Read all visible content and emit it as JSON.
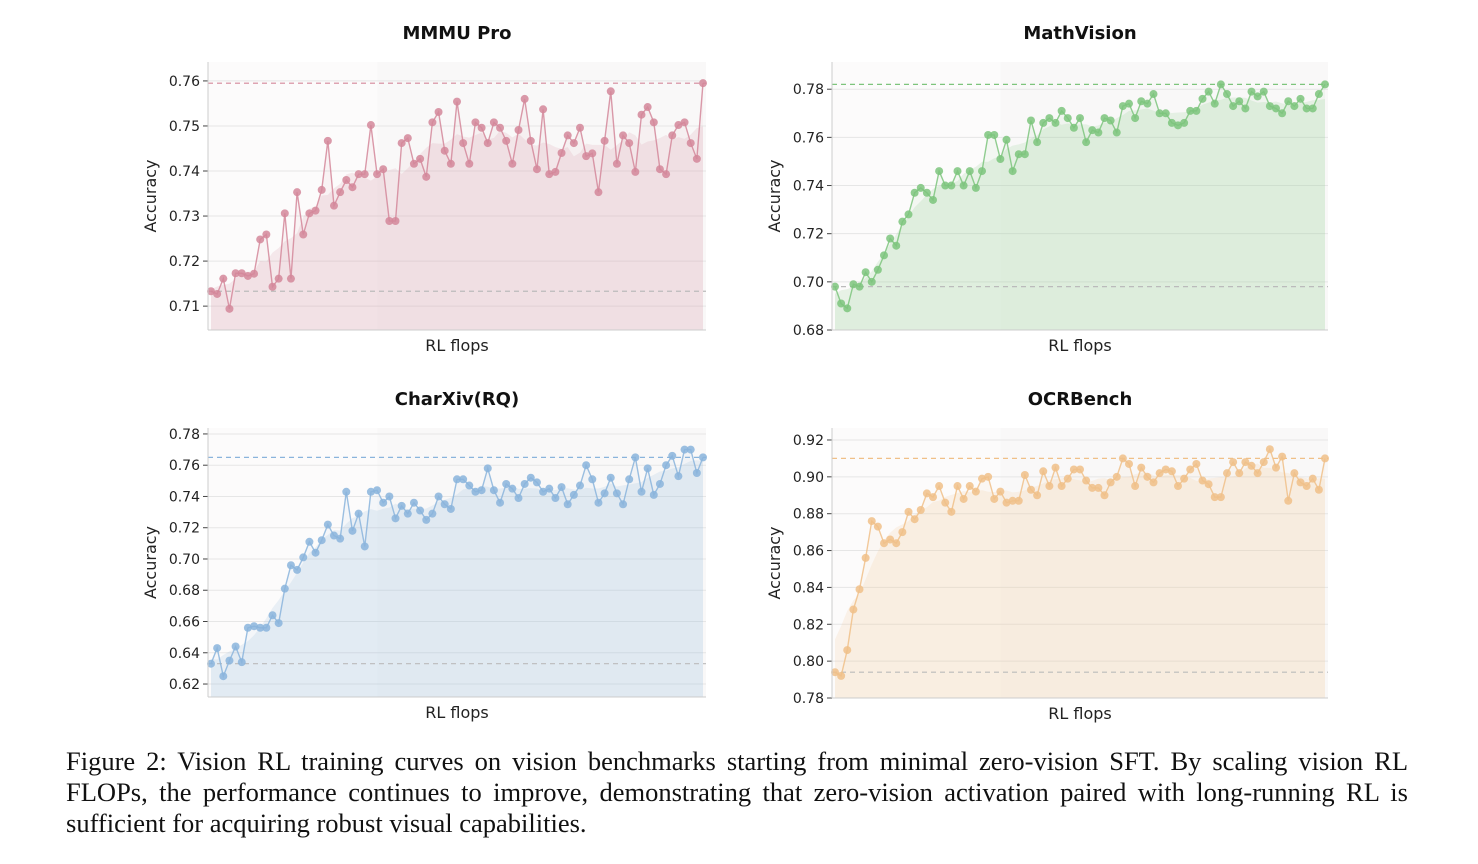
{
  "chart_data": [
    {
      "type": "line",
      "title": "MMMU Pro",
      "xlabel": "RL flops",
      "ylabel": "Accuracy",
      "ylim": [
        0.7047,
        0.7642
      ],
      "yticks": [
        "0.71",
        "0.72",
        "0.73",
        "0.74",
        "0.75",
        "0.76"
      ],
      "grid": true,
      "color": "#d4879a",
      "reference_lines": [
        0.7595,
        0.7133
      ],
      "values": [
        0.7133,
        0.7127,
        0.7161,
        0.7094,
        0.7173,
        0.7173,
        0.7167,
        0.7172,
        0.7248,
        0.7259,
        0.7143,
        0.7161,
        0.7306,
        0.7161,
        0.7353,
        0.7259,
        0.7306,
        0.7312,
        0.7358,
        0.7467,
        0.7323,
        0.7353,
        0.738,
        0.7364,
        0.7393,
        0.7393,
        0.7502,
        0.7393,
        0.7404,
        0.7289,
        0.7289,
        0.7462,
        0.7473,
        0.7416,
        0.7427,
        0.7387,
        0.7508,
        0.7531,
        0.7445,
        0.7416,
        0.7554,
        0.7462,
        0.7416,
        0.7508,
        0.7496,
        0.7462,
        0.7508,
        0.7496,
        0.7467,
        0.7416,
        0.7491,
        0.756,
        0.7467,
        0.7404,
        0.7537,
        0.7393,
        0.7398,
        0.744,
        0.7479,
        0.7462,
        0.7496,
        0.7433,
        0.7439,
        0.7353,
        0.7467,
        0.7577,
        0.7416,
        0.7479,
        0.7462,
        0.7398,
        0.7525,
        0.7542,
        0.7508,
        0.7404,
        0.7393,
        0.7479,
        0.7502,
        0.7508,
        0.7462,
        0.7427,
        0.7595
      ]
    },
    {
      "type": "line",
      "title": "MathVision",
      "xlabel": "RL flops",
      "ylabel": "Accuracy",
      "ylim": [
        0.68,
        0.7913
      ],
      "yticks": [
        "0.68",
        "0.70",
        "0.72",
        "0.74",
        "0.76",
        "0.78"
      ],
      "grid": true,
      "color": "#7dc47c",
      "reference_lines": [
        0.782,
        0.698
      ],
      "values": [
        0.698,
        0.691,
        0.689,
        0.699,
        0.698,
        0.704,
        0.7,
        0.705,
        0.711,
        0.718,
        0.715,
        0.725,
        0.728,
        0.737,
        0.739,
        0.737,
        0.734,
        0.746,
        0.74,
        0.74,
        0.746,
        0.74,
        0.746,
        0.739,
        0.746,
        0.761,
        0.761,
        0.751,
        0.759,
        0.746,
        0.753,
        0.753,
        0.767,
        0.758,
        0.766,
        0.768,
        0.766,
        0.771,
        0.768,
        0.764,
        0.768,
        0.758,
        0.763,
        0.762,
        0.768,
        0.767,
        0.762,
        0.773,
        0.774,
        0.768,
        0.775,
        0.774,
        0.778,
        0.77,
        0.77,
        0.766,
        0.765,
        0.766,
        0.771,
        0.771,
        0.776,
        0.779,
        0.774,
        0.782,
        0.778,
        0.773,
        0.775,
        0.772,
        0.779,
        0.777,
        0.779,
        0.773,
        0.772,
        0.77,
        0.775,
        0.773,
        0.776,
        0.772,
        0.772,
        0.778,
        0.782
      ]
    },
    {
      "type": "line",
      "title": "CharXiv(RQ)",
      "xlabel": "RL flops",
      "ylabel": "Accuracy",
      "ylim": [
        0.6117,
        0.7838
      ],
      "yticks": [
        "0.62",
        "0.64",
        "0.66",
        "0.68",
        "0.70",
        "0.72",
        "0.74",
        "0.76",
        "0.78"
      ],
      "grid": true,
      "color": "#8ab4dc",
      "reference_lines": [
        0.765,
        0.633
      ],
      "values": [
        0.633,
        0.643,
        0.625,
        0.635,
        0.644,
        0.634,
        0.656,
        0.657,
        0.656,
        0.656,
        0.664,
        0.659,
        0.681,
        0.696,
        0.693,
        0.701,
        0.711,
        0.704,
        0.712,
        0.722,
        0.715,
        0.713,
        0.743,
        0.718,
        0.729,
        0.708,
        0.743,
        0.744,
        0.736,
        0.74,
        0.726,
        0.734,
        0.729,
        0.736,
        0.731,
        0.725,
        0.729,
        0.74,
        0.735,
        0.732,
        0.751,
        0.751,
        0.747,
        0.743,
        0.744,
        0.758,
        0.744,
        0.736,
        0.748,
        0.745,
        0.739,
        0.748,
        0.752,
        0.749,
        0.743,
        0.745,
        0.739,
        0.746,
        0.735,
        0.741,
        0.747,
        0.76,
        0.751,
        0.736,
        0.742,
        0.752,
        0.742,
        0.735,
        0.751,
        0.765,
        0.743,
        0.758,
        0.741,
        0.748,
        0.76,
        0.766,
        0.753,
        0.77,
        0.77,
        0.755,
        0.765
      ]
    },
    {
      "type": "line",
      "title": "OCRBench",
      "xlabel": "RL flops",
      "ylabel": "Accuracy",
      "ylim": [
        0.78,
        0.9265
      ],
      "yticks": [
        "0.78",
        "0.80",
        "0.82",
        "0.84",
        "0.86",
        "0.88",
        "0.90",
        "0.92"
      ],
      "grid": true,
      "color": "#f0c088",
      "reference_lines": [
        0.91,
        0.794
      ],
      "values": [
        0.794,
        0.792,
        0.806,
        0.828,
        0.839,
        0.856,
        0.876,
        0.873,
        0.864,
        0.866,
        0.864,
        0.87,
        0.881,
        0.877,
        0.882,
        0.891,
        0.889,
        0.895,
        0.886,
        0.881,
        0.895,
        0.888,
        0.895,
        0.892,
        0.899,
        0.9,
        0.888,
        0.892,
        0.886,
        0.887,
        0.887,
        0.901,
        0.893,
        0.89,
        0.903,
        0.895,
        0.905,
        0.895,
        0.899,
        0.904,
        0.904,
        0.898,
        0.894,
        0.894,
        0.89,
        0.897,
        0.9,
        0.91,
        0.907,
        0.895,
        0.905,
        0.9,
        0.897,
        0.902,
        0.904,
        0.903,
        0.895,
        0.899,
        0.904,
        0.907,
        0.898,
        0.896,
        0.889,
        0.889,
        0.902,
        0.908,
        0.902,
        0.908,
        0.906,
        0.902,
        0.908,
        0.915,
        0.905,
        0.911,
        0.887,
        0.902,
        0.897,
        0.895,
        0.899,
        0.893,
        0.91
      ]
    }
  ],
  "caption": "Figure 2: Vision RL training curves on vision benchmarks starting from minimal zero-vision SFT. By scaling vision RL FLOPs, the performance continues to improve, demonstrating that zero-vision activation paired with long-running RL is sufficient for acquiring robust visual capabilities."
}
